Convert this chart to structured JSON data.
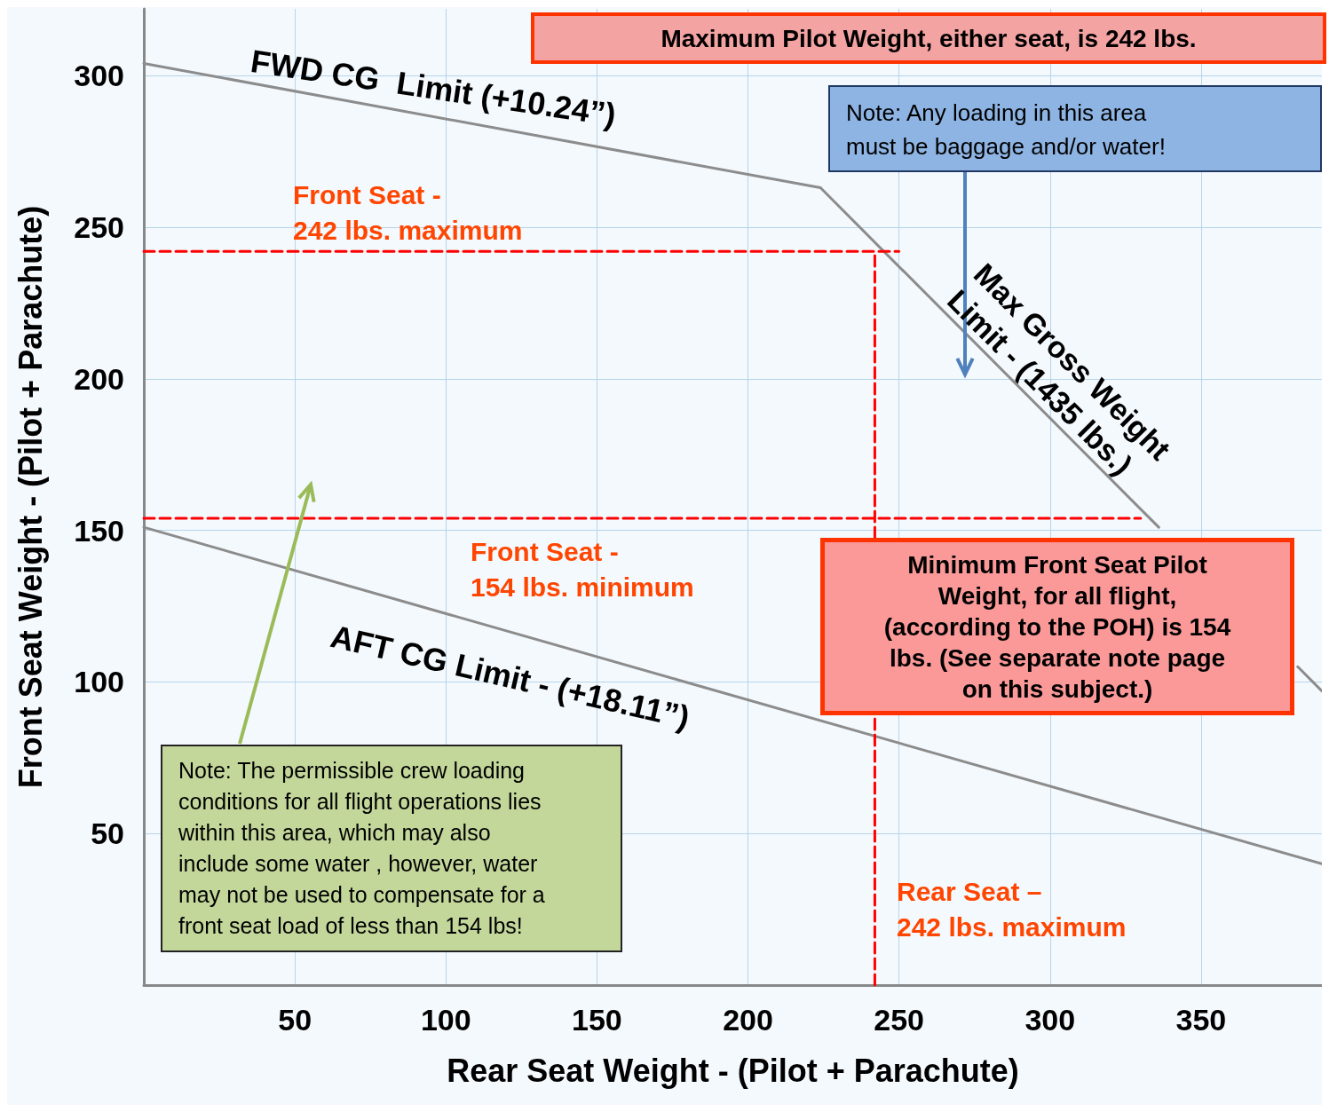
{
  "chart_data": {
    "type": "line",
    "xlabel": "Rear Seat Weight - (Pilot + Parachute)",
    "ylabel": "Front Seat Weight - (Pilot + Parachute)",
    "xlim": [
      0,
      390
    ],
    "ylim": [
      0,
      322
    ],
    "xticks": [
      50,
      100,
      150,
      200,
      250,
      300,
      350
    ],
    "yticks": [
      50,
      100,
      150,
      200,
      250,
      300
    ],
    "grid": true,
    "marker": "none",
    "series": [
      {
        "x": [
          0,
          224
        ],
        "values": [
          304,
          263
        ],
        "color": "#8c8c8c"
      },
      {
        "x": [
          224,
          336,
          359,
          382,
          390
        ],
        "values": [
          263,
          151,
          null,
          105,
          97
        ],
        "color": "#8c8c8c"
      },
      {
        "x": [
          0,
          390
        ],
        "values": [
          151,
          40
        ],
        "color": "#8c8c8c"
      },
      {
        "x": [
          0,
          250
        ],
        "values": [
          242,
          242
        ],
        "color": "#ff0000",
        "line_style": "dashed"
      },
      {
        "x": [
          0,
          330
        ],
        "values": [
          154,
          154
        ],
        "color": "#ff0000",
        "line_style": "dashed"
      },
      {
        "x": [
          242,
          242
        ],
        "values": [
          0,
          242
        ],
        "color": "#ff0000",
        "line_style": "dashed"
      }
    ],
    "annotations": [
      "Maximum Pilot Weight, either seat, is 242 lbs.",
      "Note: Any loading in this area\nmust be baggage and/or water!",
      "FWD CG  Limit (+10.24”)",
      "Max Gross Weight\nLimit - (1435 lbs.)",
      "Front Seat -\n242 lbs. maximum",
      "Front Seat -\n154 lbs. minimum",
      "AFT CG Limit - (+18.11”)",
      "Minimum Front Seat Pilot\nWeight, for all flight,\n(according to the POH) is 154\nlbs. (See separate note page\non this subject.)",
      "Note: The permissible  crew loading\nconditions for  all flight operations lies\nwithin this area, which may also\ninclude some water , however, water\nmay not be used to compensate for a\nfront seat load of less than 154 lbs!",
      "Rear Seat –\n242 lbs. maximum"
    ]
  }
}
